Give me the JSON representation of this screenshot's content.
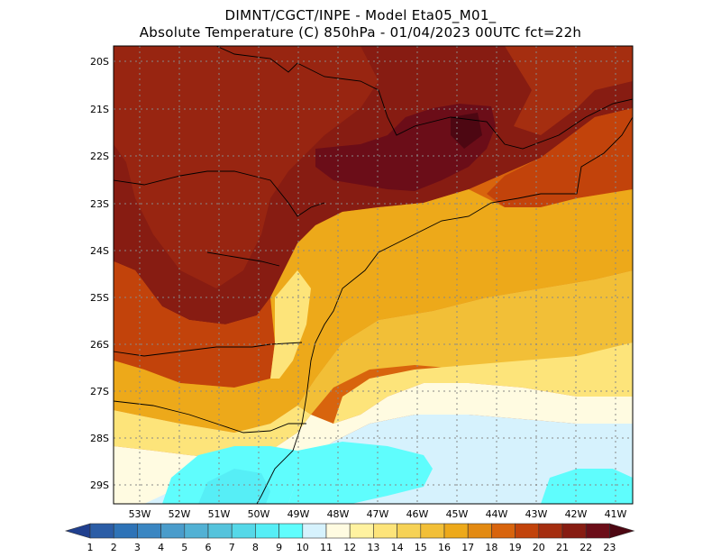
{
  "header": {
    "line1": "DIMNT/CGCT/INPE -  Model Eta05_M01_",
    "line2": "Absolute Temperature (C) 850hPa -  01/04/2023 00UTC fct=22h"
  },
  "map": {
    "lat_labels": [
      "20S",
      "21S",
      "22S",
      "23S",
      "24S",
      "25S",
      "26S",
      "27S",
      "28S",
      "29S"
    ],
    "lon_labels": [
      "53W",
      "52W",
      "51W",
      "50W",
      "49W",
      "48W",
      "47W",
      "46W",
      "45W",
      "44W",
      "43W",
      "42W",
      "41W"
    ]
  },
  "colorbar": {
    "labels": [
      "1",
      "2",
      "3",
      "4",
      "5",
      "6",
      "7",
      "8",
      "9",
      "10",
      "11",
      "12",
      "13",
      "14",
      "15",
      "16",
      "17",
      "18",
      "19",
      "20",
      "21",
      "22",
      "23"
    ],
    "colors": [
      "#203f8e",
      "#2b5da6",
      "#2e73b7",
      "#3a86c2",
      "#4a9ccb",
      "#52b1d4",
      "#55c3dc",
      "#55d8e8",
      "#56eef6",
      "#5ffdfd",
      "#d6f2fd",
      "#fffbe1",
      "#fff2a0",
      "#fde47a",
      "#f6d256",
      "#f2bf37",
      "#eda91a",
      "#e38a12",
      "#d8640d",
      "#c2430b",
      "#a52e10",
      "#871c12",
      "#6b0d18",
      "#4d0712"
    ]
  }
}
